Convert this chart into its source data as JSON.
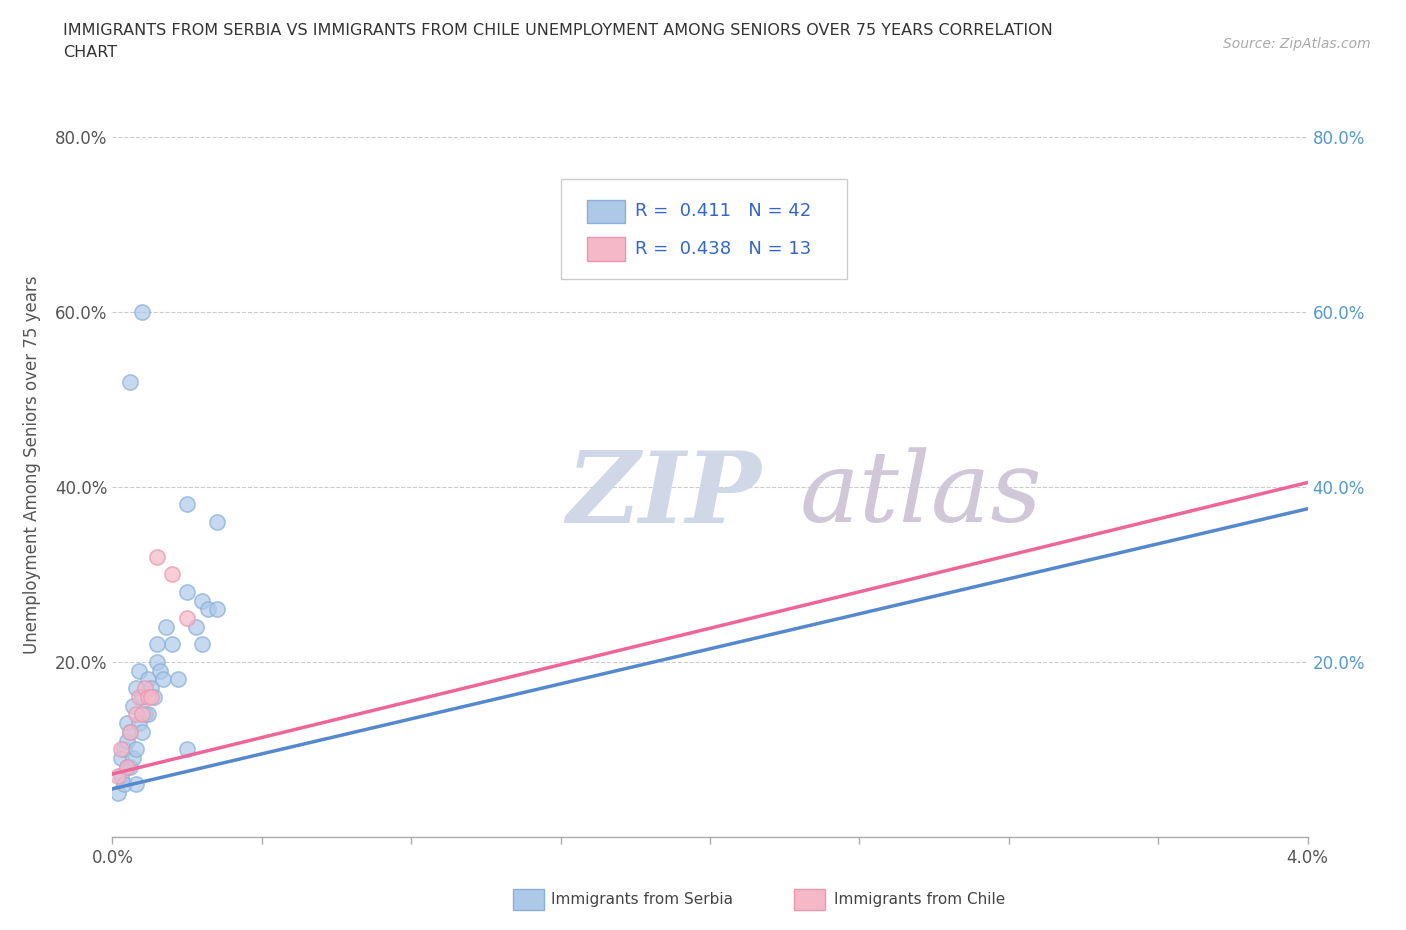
{
  "title_line1": "IMMIGRANTS FROM SERBIA VS IMMIGRANTS FROM CHILE UNEMPLOYMENT AMONG SENIORS OVER 75 YEARS CORRELATION",
  "title_line2": "CHART",
  "source": "Source: ZipAtlas.com",
  "ylabel_label": "Unemployment Among Seniors over 75 years",
  "serbia_R": 0.411,
  "serbia_N": 42,
  "chile_R": 0.438,
  "chile_N": 13,
  "serbia_color": "#aec9e8",
  "chile_color": "#f5b8c8",
  "serbia_edge_color": "#8aafd8",
  "chile_edge_color": "#e898b0",
  "serbia_line_color": "#5588cc",
  "chile_line_color": "#ee6699",
  "serbia_x": [
    0.0002,
    0.0003,
    0.0003,
    0.0004,
    0.0004,
    0.0005,
    0.0005,
    0.0005,
    0.0006,
    0.0006,
    0.0006,
    0.0007,
    0.0007,
    0.0008,
    0.0008,
    0.0009,
    0.0009,
    0.001,
    0.001,
    0.001,
    0.0011,
    0.0012,
    0.0013,
    0.0014,
    0.0015,
    0.0016,
    0.0017,
    0.0018,
    0.002,
    0.0022,
    0.0025,
    0.0028,
    0.003,
    0.0035,
    0.0008,
    0.0012,
    0.0015,
    0.0025,
    0.003,
    0.0025,
    0.0032,
    0.0035
  ],
  "serbia_y": [
    0.05,
    0.07,
    0.09,
    0.06,
    0.1,
    0.08,
    0.11,
    0.13,
    0.08,
    0.12,
    0.52,
    0.09,
    0.15,
    0.1,
    0.17,
    0.13,
    0.19,
    0.12,
    0.16,
    0.6,
    0.14,
    0.18,
    0.17,
    0.16,
    0.2,
    0.19,
    0.18,
    0.24,
    0.22,
    0.18,
    0.28,
    0.24,
    0.27,
    0.36,
    0.06,
    0.14,
    0.22,
    0.1,
    0.22,
    0.38,
    0.26,
    0.26
  ],
  "chile_x": [
    0.0002,
    0.0003,
    0.0005,
    0.0006,
    0.0008,
    0.0009,
    0.001,
    0.0011,
    0.0012,
    0.0013,
    0.0015,
    0.002,
    0.0025
  ],
  "chile_y": [
    0.07,
    0.1,
    0.08,
    0.12,
    0.14,
    0.16,
    0.14,
    0.17,
    0.16,
    0.16,
    0.32,
    0.3,
    0.25
  ],
  "serbia_trendline_x": [
    0.0,
    0.04
  ],
  "serbia_trendline_y": [
    0.055,
    0.375
  ],
  "chile_trendline_x": [
    0.0,
    0.04
  ],
  "chile_trendline_y": [
    0.072,
    0.405
  ],
  "xlim": [
    0.0,
    0.04
  ],
  "ylim": [
    0.0,
    0.85
  ],
  "x_major_ticks": [
    0.0,
    0.005,
    0.01,
    0.015,
    0.02,
    0.025,
    0.03,
    0.035,
    0.04
  ],
  "x_label_ticks": [
    0.0,
    0.04
  ],
  "x_label_values": [
    "0.0%",
    "4.0%"
  ],
  "yticks": [
    0.0,
    0.2,
    0.4,
    0.6,
    0.8
  ],
  "ylabels_left": [
    "",
    "20.0%",
    "40.0%",
    "60.0%",
    "80.0%"
  ],
  "ylabels_right": [
    "",
    "20.0%",
    "40.0%",
    "60.0%",
    "80.0%"
  ],
  "grid_color": "#cccccc",
  "watermark_zip": "ZIP",
  "watermark_atlas": "atlas",
  "watermark_color": "#d0d8e8",
  "watermark_color2": "#d0c8d8",
  "background_color": "#ffffff",
  "legend_serbia": "Immigrants from Serbia",
  "legend_chile": "Immigrants from Chile"
}
